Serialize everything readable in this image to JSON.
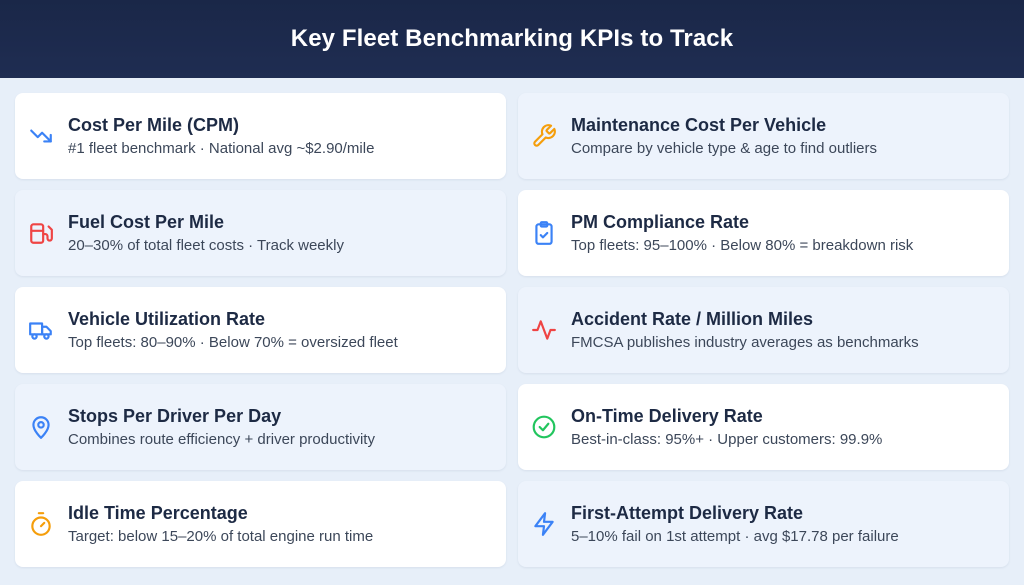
{
  "header": {
    "title": "Key Fleet Benchmarking KPIs to Track"
  },
  "cards": [
    {
      "title": "Cost Per Mile (CPM)",
      "subtitle": "#1 fleet benchmark · National avg ~$2.90/mile",
      "icon": "trend-down-icon",
      "color": "#3b82f6"
    },
    {
      "title": "Maintenance Cost Per Vehicle",
      "subtitle": "Compare by vehicle type & age to find outliers",
      "icon": "wrench-icon",
      "color": "#f59e0b"
    },
    {
      "title": "Fuel Cost Per Mile",
      "subtitle": "20–30% of total fleet costs · Track weekly",
      "icon": "fuel-pump-icon",
      "color": "#ef4444"
    },
    {
      "title": "PM Compliance Rate",
      "subtitle": "Top fleets: 95–100% · Below 80% = breakdown risk",
      "icon": "clipboard-check-icon",
      "color": "#3b82f6"
    },
    {
      "title": "Vehicle Utilization Rate",
      "subtitle": "Top fleets: 80–90% · Below 70% = oversized fleet",
      "icon": "truck-icon",
      "color": "#3b82f6"
    },
    {
      "title": "Accident Rate / Million Miles",
      "subtitle": "FMCSA publishes industry averages as benchmarks",
      "icon": "activity-icon",
      "color": "#ef4444"
    },
    {
      "title": "Stops Per Driver Per Day",
      "subtitle": "Combines route efficiency + driver productivity",
      "icon": "map-pin-icon",
      "color": "#3b82f6"
    },
    {
      "title": "On-Time Delivery Rate",
      "subtitle": "Best-in-class: 95%+ · Upper customers: 99.9%",
      "icon": "check-circle-icon",
      "color": "#22c55e"
    },
    {
      "title": "Idle Time Percentage",
      "subtitle": "Target: below 15–20% of total engine run time",
      "icon": "stopwatch-icon",
      "color": "#f59e0b"
    },
    {
      "title": "First-Attempt Delivery Rate",
      "subtitle": "5–10% fail on 1st attempt · avg $17.78 per failure",
      "icon": "lightning-icon",
      "color": "#3b82f6"
    }
  ]
}
